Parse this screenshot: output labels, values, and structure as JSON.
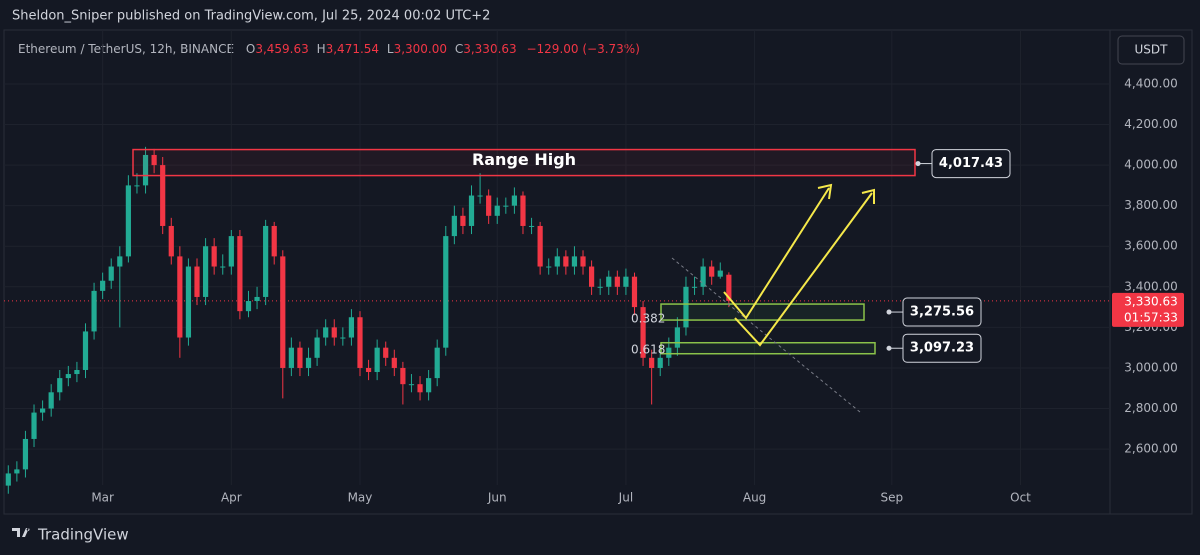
{
  "header": {
    "published": "Sheldon_Sniper published on TradingView.com, Jul 25, 2024 00:02 UTC+2",
    "symbol": "Ethereum / TetherUS, 12h, BINANCE",
    "ohlc": [
      {
        "key": "O",
        "value": "3,459.63"
      },
      {
        "key": "H",
        "value": "3,471.54"
      },
      {
        "key": "L",
        "value": "3,300.00"
      },
      {
        "key": "C",
        "value": "3,330.63"
      }
    ],
    "change": "−129.00 (−3.73%)",
    "currency": "USDT"
  },
  "footer": {
    "brand": "TradingView"
  },
  "chart_data": {
    "type": "candlestick",
    "categories": [
      null,
      null,
      null,
      null,
      null,
      null,
      null,
      null,
      null,
      null,
      null,
      "Mar",
      null,
      null,
      null,
      null,
      null,
      null,
      null,
      null,
      null,
      null,
      null,
      null,
      null,
      null,
      "Apr",
      null,
      null,
      null,
      null,
      null,
      null,
      null,
      null,
      null,
      null,
      null,
      null,
      null,
      null,
      "May",
      null,
      null,
      null,
      null,
      null,
      null,
      null,
      null,
      null,
      null,
      null,
      null,
      null,
      null,
      null,
      "Jun",
      null,
      null,
      null,
      null,
      null,
      null,
      null,
      null,
      null,
      null,
      null,
      null,
      null,
      null,
      "Jul",
      null,
      null,
      null,
      null,
      null,
      null,
      null,
      null,
      null,
      null,
      null,
      null,
      null,
      null,
      "Aug",
      null,
      null,
      null,
      null,
      null,
      null,
      null,
      null,
      null,
      null,
      null,
      null,
      null,
      null,
      null,
      "Sep",
      null,
      null,
      null,
      null,
      null,
      null,
      null,
      null,
      null,
      null,
      null,
      null,
      null,
      null,
      "Oct",
      null,
      null,
      null,
      null,
      null,
      null,
      null,
      null,
      null
    ],
    "open": [
      2420,
      2480,
      2500,
      2650,
      2780,
      2800,
      2880,
      2950,
      2970,
      2990,
      3180,
      3380,
      3430,
      3500,
      3550,
      3900,
      3900,
      4050,
      4000,
      3700,
      3550,
      3150,
      3500,
      3350,
      3600,
      3500,
      3500,
      3650,
      3280,
      3330,
      3350,
      3700,
      3550,
      3000,
      3100,
      3000,
      3050,
      3150,
      3200,
      3150,
      3150,
      3250,
      3000,
      2980,
      3100,
      3050,
      3000,
      2920,
      2920,
      2880,
      2950,
      3100,
      3650,
      3750,
      3700,
      3850,
      3850,
      3750,
      3800,
      3800,
      3850,
      3700,
      3700,
      3500,
      3500,
      3550,
      3500,
      3550,
      3500,
      3400,
      3400,
      3450,
      3400,
      3450,
      3300,
      3050,
      3000,
      3050,
      3100,
      3200,
      3400,
      3400,
      3500,
      3450,
      3459.63,
      null,
      null,
      null,
      null,
      null,
      null,
      null,
      null,
      null,
      null,
      null,
      null,
      null,
      null,
      null,
      null,
      null,
      null,
      null,
      null,
      null,
      null,
      null,
      null,
      null,
      null,
      null,
      null,
      null,
      null,
      null,
      null,
      null,
      null,
      null,
      null,
      null,
      null,
      null,
      null,
      null,
      null,
      null
    ],
    "high": [
      2520,
      2540,
      2690,
      2820,
      2840,
      2920,
      2990,
      3010,
      3030,
      3220,
      3420,
      3470,
      3540,
      3600,
      3950,
      3960,
      4090,
      4080,
      4040,
      3740,
      3600,
      3540,
      3540,
      3640,
      3640,
      3560,
      3680,
      3680,
      3380,
      3400,
      3730,
      3720,
      3580,
      3150,
      3130,
      3100,
      3190,
      3240,
      3240,
      3200,
      3290,
      3280,
      3040,
      3140,
      3130,
      3090,
      3030,
      2970,
      2960,
      2990,
      3140,
      3700,
      3800,
      3790,
      3900,
      3960,
      3880,
      3840,
      3840,
      3890,
      3870,
      3740,
      3720,
      3540,
      3590,
      3580,
      3600,
      3580,
      3530,
      3440,
      3480,
      3480,
      3490,
      3470,
      3330,
      3090,
      3100,
      3150,
      3250,
      3450,
      3450,
      3540,
      3530,
      3520,
      3471.54,
      null,
      null,
      null,
      null,
      null,
      null,
      null,
      null,
      null,
      null,
      null,
      null,
      null,
      null,
      null,
      null,
      null,
      null,
      null,
      null,
      null,
      null,
      null,
      null,
      null,
      null,
      null,
      null,
      null,
      null,
      null,
      null,
      null,
      null,
      null,
      null,
      null,
      null,
      null,
      null,
      null,
      null,
      null
    ],
    "low": [
      2380,
      2440,
      2460,
      2610,
      2740,
      2760,
      2840,
      2910,
      2930,
      2950,
      3140,
      3340,
      3390,
      3200,
      3520,
      3860,
      3860,
      3960,
      3660,
      3510,
      3050,
      3110,
      3310,
      3310,
      3460,
      3460,
      3460,
      3240,
      3250,
      3290,
      3310,
      3510,
      2850,
      2960,
      2960,
      2960,
      3010,
      3110,
      3110,
      3110,
      3110,
      2960,
      2940,
      2940,
      3010,
      2960,
      2820,
      2880,
      2840,
      2840,
      2910,
      3060,
      3610,
      3660,
      3660,
      3810,
      3710,
      3710,
      3760,
      3760,
      3660,
      3660,
      3460,
      3460,
      3460,
      3460,
      3460,
      3460,
      3360,
      3360,
      3360,
      3360,
      3360,
      3260,
      3010,
      2820,
      2960,
      3010,
      3060,
      3160,
      3360,
      3360,
      3410,
      3440,
      3300,
      null,
      null,
      null,
      null,
      null,
      null,
      null,
      null,
      null,
      null,
      null,
      null,
      null,
      null,
      null,
      null,
      null,
      null,
      null,
      null,
      null,
      null,
      null,
      null,
      null,
      null,
      null,
      null,
      null,
      null,
      null,
      null,
      null,
      null,
      null,
      null,
      null,
      null,
      null,
      null,
      null,
      null,
      null
    ],
    "close": [
      2480,
      2500,
      2650,
      2780,
      2800,
      2880,
      2950,
      2970,
      2990,
      3180,
      3380,
      3430,
      3500,
      3550,
      3900,
      3900,
      4050,
      4000,
      3700,
      3550,
      3150,
      3500,
      3350,
      3600,
      3500,
      3500,
      3650,
      3280,
      3330,
      3350,
      3700,
      3550,
      3000,
      3100,
      3000,
      3050,
      3150,
      3200,
      3150,
      3150,
      3250,
      3000,
      2980,
      3100,
      3050,
      3000,
      2920,
      2920,
      2880,
      2950,
      3100,
      3650,
      3750,
      3700,
      3850,
      3850,
      3750,
      3800,
      3800,
      3850,
      3700,
      3700,
      3500,
      3500,
      3550,
      3500,
      3550,
      3500,
      3400,
      3400,
      3450,
      3400,
      3450,
      3300,
      3050,
      3000,
      3050,
      3100,
      3200,
      3400,
      3400,
      3500,
      3450,
      3480,
      3330.63,
      null,
      null,
      null,
      null,
      null,
      null,
      null,
      null,
      null,
      null,
      null,
      null,
      null,
      null,
      null,
      null,
      null,
      null,
      null,
      null,
      null,
      null,
      null,
      null,
      null,
      null,
      null,
      null,
      null,
      null,
      null,
      null,
      null,
      null,
      null,
      null,
      null,
      null,
      null,
      null,
      null,
      null,
      null
    ],
    "up_color": "#22ab94",
    "down_color": "#f23645",
    "ylim": [
      2423,
      4666
    ],
    "yticks": [
      {
        "value": 2600,
        "label": "2,600.00"
      },
      {
        "value": 2800,
        "label": "2,800.00"
      },
      {
        "value": 3000,
        "label": "3,000.00"
      },
      {
        "value": 3200,
        "label": "3,200.00"
      },
      {
        "value": 3400,
        "label": "3,400.00"
      },
      {
        "value": 3600,
        "label": "3,600.00"
      },
      {
        "value": 3800,
        "label": "3,800.00"
      },
      {
        "value": 4000,
        "label": "4,000.00"
      },
      {
        "value": 4200,
        "label": "4,200.00"
      },
      {
        "value": 4400,
        "label": "4,400.00"
      }
    ],
    "grid": true,
    "last_price": {
      "value": 3330.63,
      "label": "3,330.63",
      "countdown": "01:57:33"
    },
    "range_high": {
      "text": "Range High",
      "level": {
        "value": 4017.43,
        "label": "4,017.43"
      }
    },
    "zones": [
      {
        "fib": "0.382",
        "level": {
          "value": 3275.56,
          "label": "3,275.56"
        }
      },
      {
        "fib": "0.618",
        "level": {
          "value": 3097.23,
          "label": "3,097.23"
        }
      }
    ]
  }
}
